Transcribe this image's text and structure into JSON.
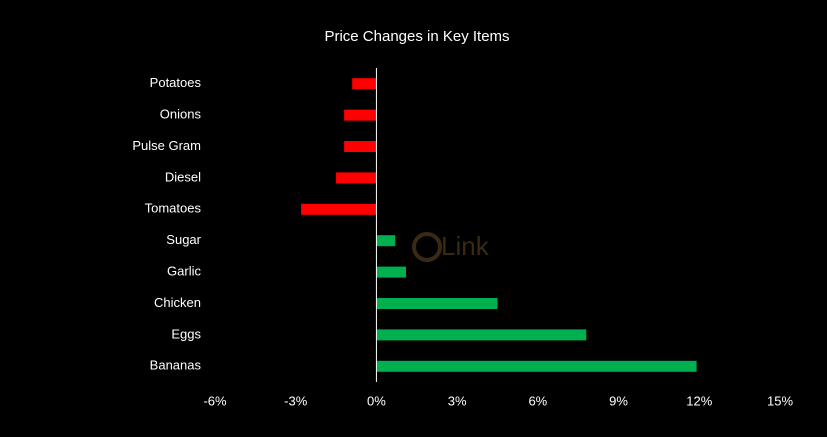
{
  "chart_data": {
    "type": "barh",
    "title": "Price Changes in Key Items",
    "categories": [
      "Potatoes",
      "Onions",
      "Pulse Gram",
      "Diesel",
      "Tomatoes",
      "Sugar",
      "Garlic",
      "Chicken",
      "Eggs",
      "Bananas"
    ],
    "values": [
      -0.9,
      -1.2,
      -1.2,
      -1.5,
      -2.8,
      0.7,
      1.1,
      4.5,
      7.8,
      11.9
    ],
    "colors": [
      "#ff0000",
      "#ff0000",
      "#ff0000",
      "#ff0000",
      "#ff0000",
      "#00b050",
      "#00b050",
      "#00b050",
      "#00b050",
      "#00b050"
    ],
    "xlim": [
      -6,
      15
    ],
    "xticks": [
      {
        "value": -6,
        "label": "-6%"
      },
      {
        "value": -3,
        "label": "-3%"
      },
      {
        "value": 0,
        "label": "0%"
      },
      {
        "value": 3,
        "label": "3%"
      },
      {
        "value": 6,
        "label": "6%"
      },
      {
        "value": 9,
        "label": "9%"
      },
      {
        "value": 12,
        "label": "12%"
      },
      {
        "value": 15,
        "label": "15%"
      }
    ],
    "watermark": "Link"
  }
}
